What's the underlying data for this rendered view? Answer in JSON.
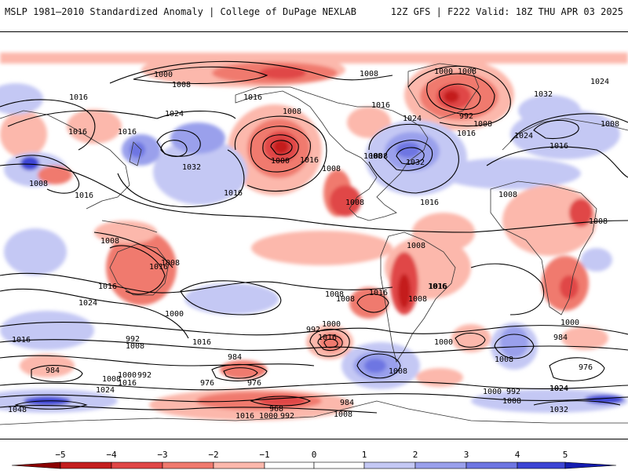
{
  "header": {
    "title": "MSLP 1981–2010 Standardized Anomaly | College of DuPage NEXLAB",
    "run_info": "12Z GFS | F222 Valid: 18Z THU APR 03 2025"
  },
  "colorbar": {
    "ticks": [
      "−5",
      "−4",
      "−3",
      "−2",
      "−1",
      "0",
      "1",
      "2",
      "3",
      "4",
      "5"
    ],
    "colors": {
      "neg5": "#8b0000",
      "neg4": "#c41e1e",
      "neg3": "#e04646",
      "neg2": "#f07a6e",
      "neg1": "#fcb8ac",
      "zero": "#ffffff",
      "pos1": "#c4c8f4",
      "pos2": "#9aa0ec",
      "pos3": "#6e76e2",
      "pos4": "#3c44d4",
      "pos5": "#141cb0"
    }
  },
  "map": {
    "colors": {
      "isobar": "#000000",
      "coast": "#333333"
    },
    "isobar_labels": [
      "1000",
      "1008",
      "1008",
      "1000",
      "1008",
      "1024",
      "1016",
      "1016",
      "1016",
      "1008",
      "1016",
      "1024",
      "1032",
      "1016",
      "1008",
      "1016",
      "1024",
      "1032",
      "992",
      "1008",
      "1016",
      "1024",
      "1008",
      "1016",
      "1008",
      "1008",
      "1032",
      "1008",
      "1000",
      "1016",
      "1016",
      "1016",
      "1008",
      "1008",
      "1016",
      "1008",
      "1008",
      "1008",
      "1008",
      "1008",
      "1008",
      "1008",
      "1016",
      "1016",
      "1024",
      "1016",
      "1016",
      "1000",
      "1008",
      "1024",
      "1016",
      "1000",
      "992",
      "1008",
      "1016",
      "992",
      "1000",
      "1016",
      "1008",
      "1000",
      "984",
      "984",
      "1000",
      "992",
      "1008",
      "1016",
      "984",
      "976",
      "1024",
      "976",
      "1000",
      "992",
      "1024",
      "1048",
      "968",
      "984",
      "1016",
      "1000",
      "992",
      "1008",
      "1008",
      "1032",
      "976"
    ]
  }
}
